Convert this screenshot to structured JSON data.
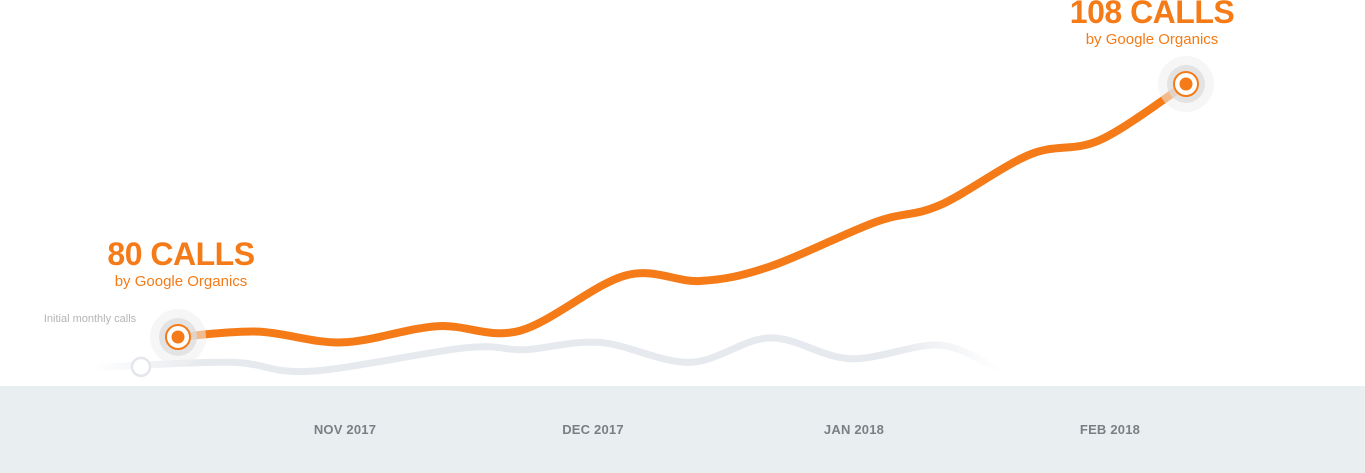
{
  "chart_data": {
    "type": "line",
    "title": "",
    "xlabel": "",
    "ylabel": "",
    "x_ticks": [
      "NOV 2017",
      "DEC 2017",
      "JAN 2018",
      "FEB 2018"
    ],
    "grid": true,
    "legend": "none",
    "ylim": [
      70,
      112
    ],
    "series": [
      {
        "color": "#f47b17",
        "values": [
          80,
          80.6,
          79.4,
          81.2,
          80.7,
          86.8,
          86.2,
          87.8,
          92.7,
          94.6,
          100.2,
          101.8,
          108
        ]
      },
      {
        "color": "#e6e9ed",
        "values": [
          76.6,
          77.2,
          76.2,
          78.8,
          78.6,
          79.4,
          77.2,
          79.9,
          77.6,
          79.1,
          76.3
        ]
      }
    ],
    "annotations": [
      {
        "value": "80 CALLS",
        "subtitle": "by Google Organics"
      },
      {
        "value": "108 CALLS",
        "subtitle": "by Google Organics"
      },
      {
        "text": "Initial monthly calls"
      }
    ]
  }
}
